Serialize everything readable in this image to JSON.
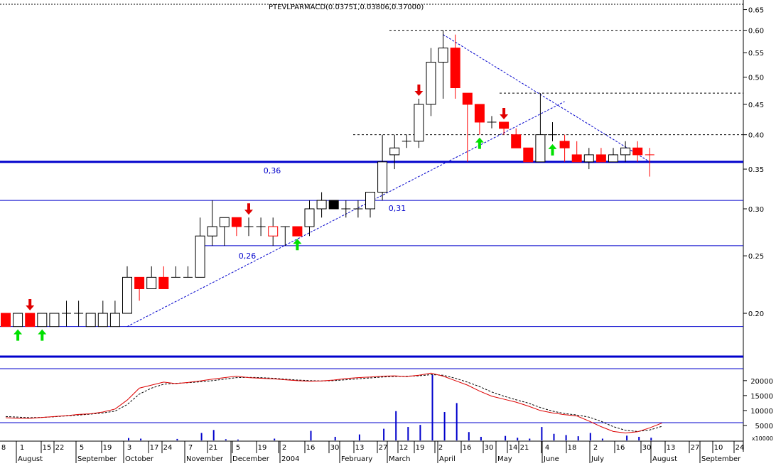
{
  "chart_data": {
    "type": "candlestick",
    "title": "PTEVLPARMACD(0.03751,0.03806,0.37000)",
    "price_axis": {
      "scale": "log",
      "range": [
        0.17,
        0.66
      ],
      "ticks": [
        0.2,
        0.25,
        0.3,
        0.35,
        0.4,
        0.45,
        0.5,
        0.55,
        0.6,
        0.65
      ],
      "tick_labels": [
        "0.20",
        "0.25",
        "0.30",
        "0.35",
        "0.40",
        "0.45",
        "0.50",
        "0.55",
        "0.60",
        "0.65"
      ]
    },
    "candle_colors": {
      "up": "#ffffff",
      "down": "#ff0000",
      "highlight": "#000000",
      "wick": "#000000"
    },
    "candles": [
      {
        "o": 0.19,
        "h": 0.2,
        "l": 0.19,
        "c": 0.2,
        "dir": "down"
      },
      {
        "o": 0.19,
        "h": 0.2,
        "l": 0.19,
        "c": 0.2,
        "dir": "up"
      },
      {
        "o": 0.19,
        "h": 0.2,
        "l": 0.19,
        "c": 0.2,
        "dir": "down"
      },
      {
        "o": 0.19,
        "h": 0.2,
        "l": 0.19,
        "c": 0.2,
        "dir": "up"
      },
      {
        "o": 0.19,
        "h": 0.2,
        "l": 0.19,
        "c": 0.2,
        "dir": "up"
      },
      {
        "o": 0.2,
        "h": 0.21,
        "l": 0.19,
        "c": 0.2,
        "dir": "doji"
      },
      {
        "o": 0.2,
        "h": 0.21,
        "l": 0.19,
        "c": 0.2,
        "dir": "doji"
      },
      {
        "o": 0.19,
        "h": 0.2,
        "l": 0.19,
        "c": 0.2,
        "dir": "up"
      },
      {
        "o": 0.19,
        "h": 0.21,
        "l": 0.19,
        "c": 0.2,
        "dir": "up"
      },
      {
        "o": 0.19,
        "h": 0.21,
        "l": 0.19,
        "c": 0.2,
        "dir": "up"
      },
      {
        "o": 0.2,
        "h": 0.24,
        "l": 0.2,
        "c": 0.23,
        "dir": "up"
      },
      {
        "o": 0.23,
        "h": 0.23,
        "l": 0.21,
        "c": 0.22,
        "dir": "down"
      },
      {
        "o": 0.22,
        "h": 0.24,
        "l": 0.22,
        "c": 0.23,
        "dir": "up"
      },
      {
        "o": 0.23,
        "h": 0.24,
        "l": 0.22,
        "c": 0.22,
        "dir": "down"
      },
      {
        "o": 0.23,
        "h": 0.24,
        "l": 0.23,
        "c": 0.23,
        "dir": "doji"
      },
      {
        "o": 0.23,
        "h": 0.24,
        "l": 0.23,
        "c": 0.23,
        "dir": "doji"
      },
      {
        "o": 0.23,
        "h": 0.29,
        "l": 0.23,
        "c": 0.27,
        "dir": "up"
      },
      {
        "o": 0.27,
        "h": 0.31,
        "l": 0.26,
        "c": 0.28,
        "dir": "up"
      },
      {
        "o": 0.28,
        "h": 0.29,
        "l": 0.26,
        "c": 0.29,
        "dir": "up"
      },
      {
        "o": 0.29,
        "h": 0.29,
        "l": 0.27,
        "c": 0.28,
        "dir": "down"
      },
      {
        "o": 0.28,
        "h": 0.29,
        "l": 0.27,
        "c": 0.28,
        "dir": "doji"
      },
      {
        "o": 0.28,
        "h": 0.29,
        "l": 0.27,
        "c": 0.28,
        "dir": "doji"
      },
      {
        "o": 0.27,
        "h": 0.29,
        "l": 0.26,
        "c": 0.28,
        "dir": "hollow-down"
      },
      {
        "o": 0.28,
        "h": 0.28,
        "l": 0.26,
        "c": 0.28,
        "dir": "doji"
      },
      {
        "o": 0.28,
        "h": 0.28,
        "l": 0.27,
        "c": 0.27,
        "dir": "down"
      },
      {
        "o": 0.28,
        "h": 0.31,
        "l": 0.27,
        "c": 0.3,
        "dir": "up"
      },
      {
        "o": 0.3,
        "h": 0.32,
        "l": 0.29,
        "c": 0.31,
        "dir": "up"
      },
      {
        "o": 0.3,
        "h": 0.31,
        "l": 0.3,
        "c": 0.31,
        "dir": "black"
      },
      {
        "o": 0.3,
        "h": 0.31,
        "l": 0.29,
        "c": 0.3,
        "dir": "doji"
      },
      {
        "o": 0.3,
        "h": 0.31,
        "l": 0.29,
        "c": 0.3,
        "dir": "doji"
      },
      {
        "o": 0.3,
        "h": 0.32,
        "l": 0.29,
        "c": 0.32,
        "dir": "up"
      },
      {
        "o": 0.32,
        "h": 0.4,
        "l": 0.31,
        "c": 0.36,
        "dir": "up"
      },
      {
        "o": 0.37,
        "h": 0.4,
        "l": 0.35,
        "c": 0.38,
        "dir": "up"
      },
      {
        "o": 0.39,
        "h": 0.4,
        "l": 0.38,
        "c": 0.39,
        "dir": "doji"
      },
      {
        "o": 0.39,
        "h": 0.46,
        "l": 0.38,
        "c": 0.45,
        "dir": "up"
      },
      {
        "o": 0.45,
        "h": 0.56,
        "l": 0.43,
        "c": 0.53,
        "dir": "up"
      },
      {
        "o": 0.53,
        "h": 0.6,
        "l": 0.46,
        "c": 0.56,
        "dir": "up"
      },
      {
        "o": 0.56,
        "h": 0.59,
        "l": 0.46,
        "c": 0.48,
        "dir": "down"
      },
      {
        "o": 0.47,
        "h": 0.47,
        "l": 0.36,
        "c": 0.45,
        "dir": "down"
      },
      {
        "o": 0.45,
        "h": 0.45,
        "l": 0.4,
        "c": 0.42,
        "dir": "down"
      },
      {
        "o": 0.42,
        "h": 0.43,
        "l": 0.41,
        "c": 0.42,
        "dir": "doji"
      },
      {
        "o": 0.42,
        "h": 0.42,
        "l": 0.4,
        "c": 0.41,
        "dir": "down"
      },
      {
        "o": 0.4,
        "h": 0.41,
        "l": 0.38,
        "c": 0.38,
        "dir": "down"
      },
      {
        "o": 0.38,
        "h": 0.38,
        "l": 0.36,
        "c": 0.36,
        "dir": "down"
      },
      {
        "o": 0.36,
        "h": 0.47,
        "l": 0.36,
        "c": 0.4,
        "dir": "up"
      },
      {
        "o": 0.4,
        "h": 0.42,
        "l": 0.39,
        "c": 0.4,
        "dir": "doji"
      },
      {
        "o": 0.39,
        "h": 0.4,
        "l": 0.36,
        "c": 0.38,
        "dir": "down"
      },
      {
        "o": 0.37,
        "h": 0.39,
        "l": 0.36,
        "c": 0.36,
        "dir": "down"
      },
      {
        "o": 0.36,
        "h": 0.38,
        "l": 0.35,
        "c": 0.37,
        "dir": "up"
      },
      {
        "o": 0.37,
        "h": 0.38,
        "l": 0.36,
        "c": 0.36,
        "dir": "down"
      },
      {
        "o": 0.36,
        "h": 0.38,
        "l": 0.36,
        "c": 0.37,
        "dir": "up"
      },
      {
        "o": 0.37,
        "h": 0.39,
        "l": 0.36,
        "c": 0.38,
        "dir": "up"
      },
      {
        "o": 0.38,
        "h": 0.39,
        "l": 0.36,
        "c": 0.37,
        "dir": "down"
      },
      {
        "o": 0.37,
        "h": 0.38,
        "l": 0.34,
        "c": 0.37,
        "dir": "doji-red"
      }
    ],
    "horizontal_lines": [
      {
        "value": 0.36,
        "label": "0,36",
        "style": "thick"
      },
      {
        "value": 0.31,
        "label": "0,31",
        "style": "thin"
      },
      {
        "value": 0.26,
        "label": "0,26",
        "style": "thin"
      },
      {
        "value": 0.19,
        "label": "",
        "style": "thin"
      }
    ],
    "resistance_dotted": [
      0.6,
      0.47,
      0.4
    ],
    "trendlines": [
      {
        "from_candle": 10,
        "from_value": 0.19,
        "to_candle": 46,
        "to_value": 0.455
      },
      {
        "from_candle": 36,
        "from_value": 0.59,
        "to_candle": 53,
        "to_value": 0.36
      }
    ],
    "signals": [
      {
        "candle": 2,
        "type": "sell"
      },
      {
        "candle": 1,
        "type": "buy"
      },
      {
        "candle": 3,
        "type": "buy"
      },
      {
        "candle": 20,
        "type": "sell"
      },
      {
        "candle": 24,
        "type": "buy"
      },
      {
        "candle": 34,
        "type": "sell"
      },
      {
        "candle": 39,
        "type": "buy"
      },
      {
        "candle": 41,
        "type": "sell"
      },
      {
        "candle": 45,
        "type": "buy"
      }
    ],
    "signal_colors": {
      "buy": "#00e000",
      "sell": "#e00000"
    },
    "volume_axis": {
      "range": [
        0,
        24000
      ],
      "ticks": [
        5000,
        10000,
        15000,
        20000
      ],
      "tick_labels": [
        "5000",
        "10000",
        "15000",
        "20000"
      ],
      "unit_label": "x10000"
    },
    "volume": [
      0,
      0,
      0,
      0,
      0,
      0,
      0,
      0,
      0,
      0,
      800,
      600,
      0,
      0,
      500,
      0,
      2500,
      3500,
      400,
      300,
      0,
      0,
      600,
      0,
      0,
      3200,
      0,
      1200,
      0,
      2000,
      0,
      3900,
      9800,
      4500,
      5200,
      22000,
      9500,
      12500,
      2800,
      1200,
      0,
      1500,
      900,
      600,
      4500,
      2200,
      1800,
      1400,
      2500,
      600,
      0,
      1600,
      1200,
      900
    ],
    "volume_line": [
      7600,
      7400,
      7400,
      7700,
      8000,
      8300,
      8700,
      8900,
      9500,
      10500,
      13500,
      17500,
      18500,
      19500,
      19000,
      19400,
      19900,
      20500,
      21000,
      21500,
      21000,
      20800,
      20600,
      20300,
      20000,
      19800,
      19900,
      20200,
      20700,
      21000,
      21200,
      21500,
      21600,
      21400,
      21800,
      22500,
      21500,
      20000,
      18500,
      16500,
      14800,
      13800,
      12800,
      11500,
      10000,
      9200,
      8600,
      8200,
      6500,
      4600,
      3000,
      2500,
      2900,
      4200,
      5800
    ],
    "volume_signal_line": [
      8000,
      7800,
      7600,
      7700,
      7900,
      8200,
      8500,
      8800,
      9200,
      9800,
      12000,
      15500,
      17500,
      18800,
      19100,
      19300,
      19600,
      20000,
      20500,
      21000,
      21100,
      21000,
      20800,
      20500,
      20200,
      20000,
      19900,
      20000,
      20300,
      20600,
      20900,
      21200,
      21400,
      21500,
      21600,
      22000,
      21800,
      20800,
      19500,
      18000,
      16200,
      14800,
      13600,
      12500,
      11000,
      9800,
      9000,
      8500,
      7800,
      6400,
      4600,
      3400,
      3000,
      3500,
      4700
    ],
    "time_axis": {
      "day_labels": [
        "8",
        "1",
        "15",
        "22",
        "5",
        "19",
        "3",
        "17",
        "24",
        "7",
        "21",
        "5",
        "19",
        "2",
        "16",
        "30",
        "13",
        "27",
        "12",
        "19",
        "2",
        "16",
        "30",
        "14",
        "21",
        "4",
        "18",
        "2",
        "16",
        "30",
        "13",
        "27",
        "10",
        "24"
      ],
      "month_labels": [
        "August",
        "September",
        "October",
        "November",
        "December",
        "2004",
        "February",
        "March",
        "April",
        "May",
        "June",
        "July",
        "August",
        "September"
      ]
    }
  }
}
